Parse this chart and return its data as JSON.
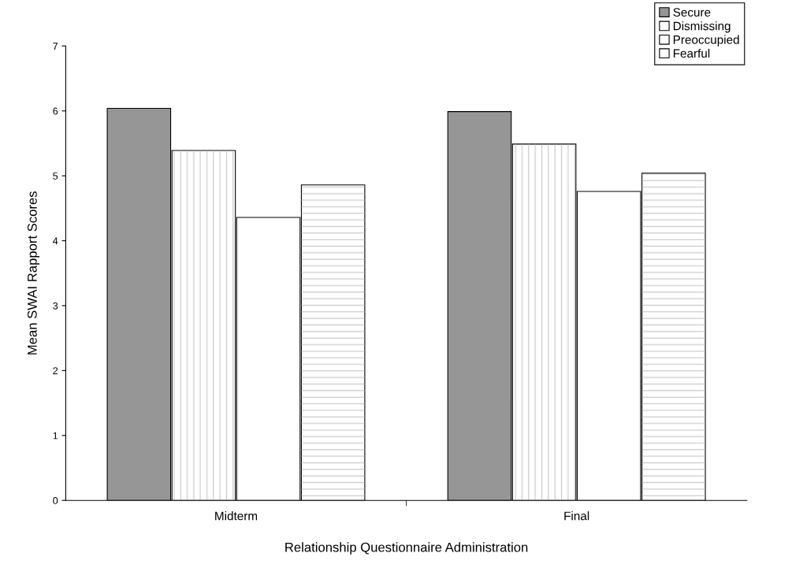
{
  "chart_data": {
    "type": "bar",
    "xlabel": "Relationship Questionnaire Administration",
    "ylabel": "Mean SWAI Rapport Scores",
    "categories": [
      "Midterm",
      "Final"
    ],
    "series": [
      {
        "name": "Secure",
        "color": "#969696",
        "values": [
          6.04,
          5.99
        ]
      },
      {
        "name": "Dismissing",
        "color": "#ffffff",
        "values": [
          5.39,
          5.49
        ]
      },
      {
        "name": "Preoccupied",
        "color": "#ffffff",
        "values": [
          4.36,
          4.76
        ]
      },
      {
        "name": "Fearful",
        "color": "#ffffff",
        "values": [
          4.86,
          5.04
        ]
      }
    ],
    "ylim": [
      0,
      7
    ],
    "yticks": [
      0,
      1,
      2,
      3,
      4,
      5,
      6,
      7
    ],
    "grid": false,
    "legend": "top right"
  }
}
